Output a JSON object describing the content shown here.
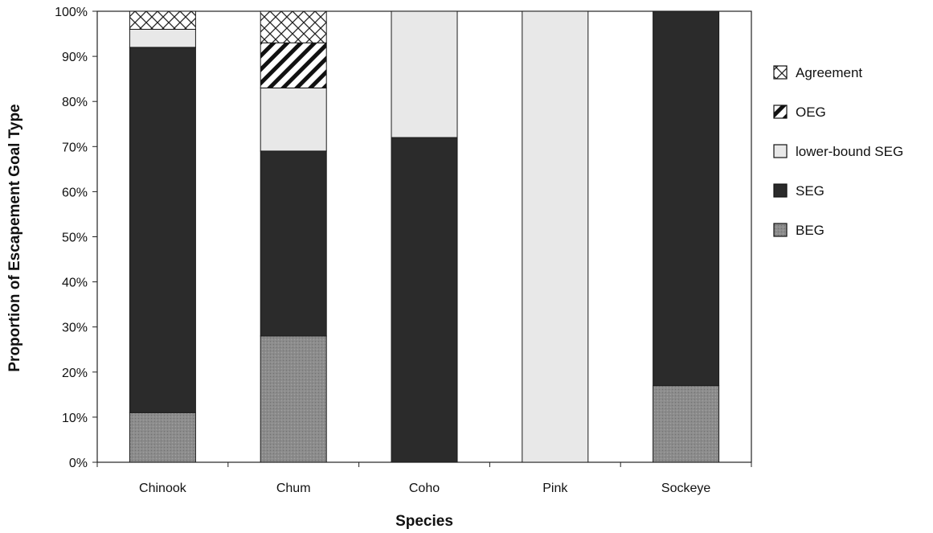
{
  "chart_data": {
    "type": "bar",
    "stacked": true,
    "percent": true,
    "title": "",
    "xlabel": "Species",
    "ylabel": "Proportion of Escapement Goal Type",
    "ylim": [
      0,
      100
    ],
    "yticks": [
      "0%",
      "10%",
      "20%",
      "30%",
      "40%",
      "50%",
      "60%",
      "70%",
      "80%",
      "90%",
      "100%"
    ],
    "categories": [
      "Chinook",
      "Chum",
      "Coho",
      "Pink",
      "Sockeye"
    ],
    "series": [
      {
        "name": "BEG",
        "values": [
          11,
          28,
          0,
          0,
          17
        ],
        "color": "#8c8c8c",
        "pattern": "dots"
      },
      {
        "name": "SEG",
        "values": [
          81,
          41,
          72,
          0,
          83
        ],
        "color": "#2b2b2b",
        "pattern": "solid"
      },
      {
        "name": "lower-bound SEG",
        "values": [
          4,
          14,
          28,
          100,
          0
        ],
        "color": "#e8e8e8",
        "pattern": "solid"
      },
      {
        "name": "OEG",
        "values": [
          0,
          10,
          0,
          0,
          0
        ],
        "color": "#ffffff",
        "pattern": "diagonal"
      },
      {
        "name": "Agreement",
        "values": [
          4,
          7,
          0,
          0,
          0
        ],
        "color": "#ffffff",
        "pattern": "crosshatch"
      }
    ],
    "legend": {
      "position": "right",
      "order": [
        "Agreement",
        "OEG",
        "lower-bound SEG",
        "SEG",
        "BEG"
      ]
    },
    "grid": false
  }
}
